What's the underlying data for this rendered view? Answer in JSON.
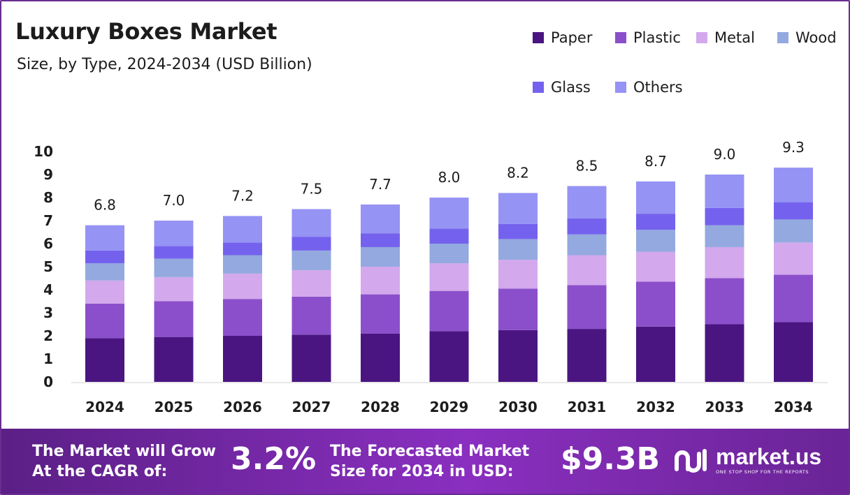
{
  "header": {
    "title": "Luxury Boxes Market",
    "subtitle": "Size, by Type, 2024-2034 (USD Billion)"
  },
  "chart_data": {
    "type": "bar",
    "stacked": true,
    "categories": [
      "2024",
      "2025",
      "2026",
      "2027",
      "2028",
      "2029",
      "2030",
      "2031",
      "2032",
      "2033",
      "2034"
    ],
    "totals": [
      6.8,
      7.0,
      7.2,
      7.5,
      7.7,
      8.0,
      8.2,
      8.5,
      8.7,
      9.0,
      9.3
    ],
    "total_labels": [
      "6.8",
      "7.0",
      "7.2",
      "7.5",
      "7.7",
      "8.0",
      "8.2",
      "8.5",
      "8.7",
      "9.0",
      "9.3"
    ],
    "series": [
      {
        "name": "Paper",
        "color": "#4a1581",
        "values": [
          1.9,
          1.95,
          2.0,
          2.05,
          2.1,
          2.2,
          2.25,
          2.3,
          2.4,
          2.5,
          2.6
        ]
      },
      {
        "name": "Plastic",
        "color": "#8b4fcb",
        "values": [
          1.5,
          1.55,
          1.6,
          1.65,
          1.7,
          1.75,
          1.8,
          1.9,
          1.95,
          2.0,
          2.05
        ]
      },
      {
        "name": "Metal",
        "color": "#d3a8ec",
        "values": [
          1.0,
          1.05,
          1.1,
          1.15,
          1.2,
          1.2,
          1.25,
          1.3,
          1.3,
          1.35,
          1.4
        ]
      },
      {
        "name": "Wood",
        "color": "#93a9df",
        "values": [
          0.75,
          0.8,
          0.8,
          0.85,
          0.85,
          0.85,
          0.9,
          0.9,
          0.95,
          0.95,
          1.0
        ]
      },
      {
        "name": "Glass",
        "color": "#7462ee",
        "values": [
          0.55,
          0.55,
          0.55,
          0.6,
          0.6,
          0.65,
          0.65,
          0.7,
          0.7,
          0.75,
          0.75
        ]
      },
      {
        "name": "Others",
        "color": "#9593f3",
        "values": [
          1.1,
          1.1,
          1.15,
          1.2,
          1.25,
          1.35,
          1.35,
          1.4,
          1.4,
          1.45,
          1.5
        ]
      }
    ],
    "ylim": [
      0,
      10
    ],
    "yticks": [
      "0",
      "1",
      "2",
      "3",
      "4",
      "5",
      "6",
      "7",
      "8",
      "9",
      "10"
    ],
    "grid": false,
    "legend": "top-right"
  },
  "footer": {
    "cagr_label": [
      "The Market will Grow",
      "At the CAGR of:"
    ],
    "cagr_value": "3.2%",
    "forecast_label": [
      "The Forecasted Market",
      "Size for 2034 in USD:"
    ],
    "forecast_value": "$9.3B",
    "brand_name": "market.us",
    "brand_tagline": "ONE STOP SHOP FOR THE REPORTS",
    "brand_icon": "market-us-logo-icon"
  }
}
